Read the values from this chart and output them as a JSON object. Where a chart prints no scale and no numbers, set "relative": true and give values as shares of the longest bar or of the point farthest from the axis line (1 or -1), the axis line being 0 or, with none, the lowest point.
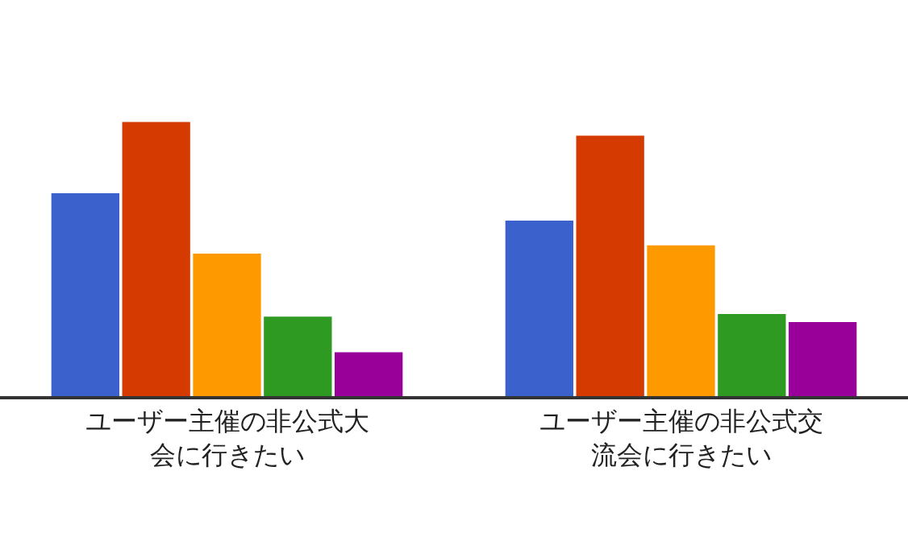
{
  "chart_data": {
    "type": "bar",
    "relative": true,
    "categories": [
      "ユーザー主催の非公式大会に行きたい",
      "ユーザー主催の非公式交流会に行きたい"
    ],
    "series": [
      {
        "color": "#3b62cc",
        "values": [
          0.74,
          0.64
        ]
      },
      {
        "color": "#d53a00",
        "values": [
          1,
          0.95
        ]
      },
      {
        "color": "#ff9900",
        "values": [
          0.52,
          0.55
        ]
      },
      {
        "color": "#2e9a22",
        "values": [
          0.29,
          0.3
        ]
      },
      {
        "color": "#990099",
        "values": [
          0.16,
          0.27
        ]
      }
    ]
  }
}
